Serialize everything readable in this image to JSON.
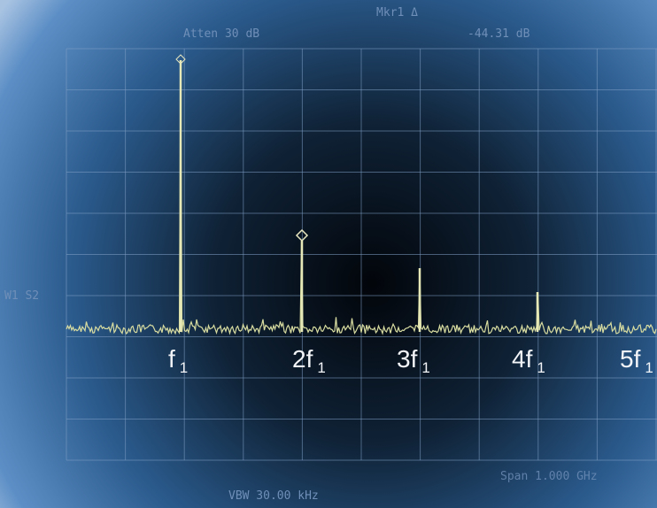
{
  "screen": {
    "atten": "Atten 30 dB",
    "marker": "Mkr1 Δ",
    "marker_value": "-44.31 dB",
    "trace_label": "W1 S2",
    "span": "Span 1.000 GHz",
    "vbw": "VBW 30.00 kHz"
  },
  "harmonics": [
    {
      "base": "f",
      "sub": "1"
    },
    {
      "base": "2f",
      "sub": "1"
    },
    {
      "base": "3f",
      "sub": "1"
    },
    {
      "base": "4f",
      "sub": "1"
    },
    {
      "base": "5f",
      "sub": "1"
    }
  ]
}
